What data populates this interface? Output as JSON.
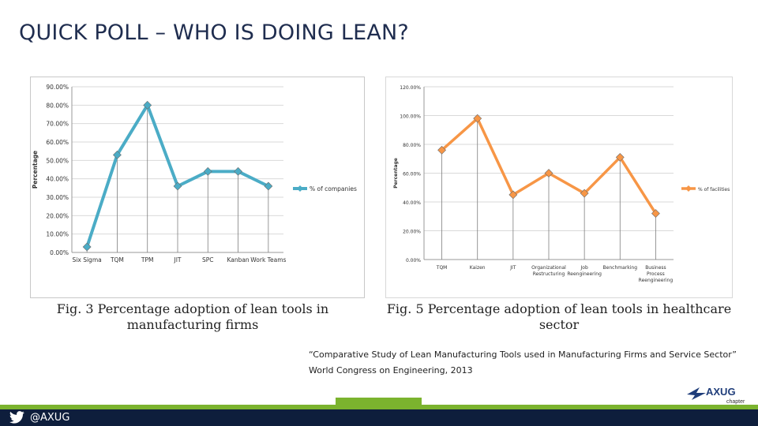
{
  "slide": {
    "title": "QUICK POLL – WHO IS DOING LEAN?"
  },
  "chart_data": [
    {
      "type": "line",
      "title": "",
      "xlabel": "",
      "ylabel": "Percentage",
      "categories": [
        "Six Sigma",
        "TQM",
        "TPM",
        "JIT",
        "SPC",
        "Kanban",
        "Work Teams"
      ],
      "series": [
        {
          "name": "% of companies",
          "values": [
            3,
            53,
            80,
            36,
            44,
            44,
            36
          ]
        }
      ],
      "ylim": [
        0,
        90
      ],
      "yticks": [
        "0.00%",
        "10.00%",
        "20.00%",
        "30.00%",
        "40.00%",
        "50.00%",
        "60.00%",
        "70.00%",
        "80.00%",
        "90.00%"
      ],
      "grid": "horizontal",
      "legend": "right",
      "color": "#4bacc6",
      "caption": "Fig. 3 Percentage adoption of lean tools in manufacturing firms"
    },
    {
      "type": "line",
      "title": "",
      "xlabel": "",
      "ylabel": "Percentage",
      "categories": [
        "TQM",
        "Kaizen",
        "JIT",
        "Organizational Restructuring",
        "Job Reengineering",
        "Benchmarking",
        "Business Process Reengineering"
      ],
      "series": [
        {
          "name": "% of facilities",
          "values": [
            76,
            98,
            45,
            60,
            46,
            71,
            32
          ]
        }
      ],
      "ylim": [
        0,
        120
      ],
      "yticks": [
        "0.00%",
        "20.00%",
        "40.00%",
        "60.00%",
        "80.00%",
        "100.00%",
        "120.00%"
      ],
      "grid": "horizontal",
      "legend": "right",
      "color": "#f79646",
      "caption": "Fig. 5 Percentage adoption of lean tools in healthcare sector"
    }
  ],
  "citation": {
    "line1": "“Comparative Study of Lean Manufacturing Tools used in Manufacturing Firms and Service Sector”",
    "line2": "World Congress on Engineering, 2013"
  },
  "footer": {
    "handle": "@AXUG",
    "twitter_icon": "twitter-bird-icon",
    "bar_color": "#0e1e3c",
    "accent_color": "#7bb32e"
  },
  "logo": {
    "text": "AXUG",
    "subtext": "chapter"
  }
}
